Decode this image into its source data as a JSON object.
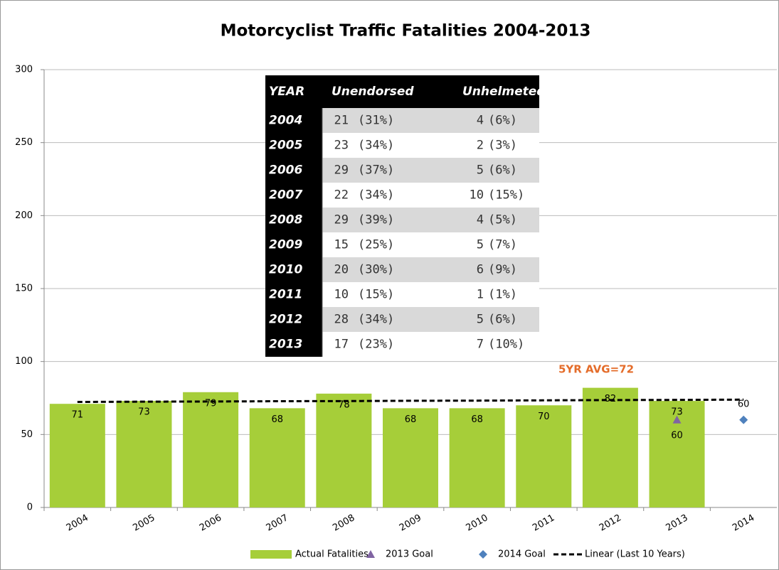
{
  "chart_data": {
    "type": "bar",
    "title": "Motorcyclist Traffic Fatalities 2004-2013",
    "annotation": "5YR AVG=72",
    "categories": [
      "2004",
      "2005",
      "2006",
      "2007",
      "2008",
      "2009",
      "2010",
      "2011",
      "2012",
      "2013",
      "2014"
    ],
    "series": [
      {
        "name": "Actual Fatalities",
        "kind": "bar",
        "color": "#a6ce39",
        "data_labels": true,
        "label_position": "inside",
        "values": [
          71,
          73,
          79,
          68,
          78,
          68,
          68,
          70,
          82,
          73,
          null
        ]
      },
      {
        "name": "2013 Goal",
        "kind": "marker",
        "marker": "triangle",
        "color": "#8064a2",
        "data_labels": true,
        "label_position": "below",
        "values": [
          null,
          null,
          null,
          null,
          null,
          null,
          null,
          null,
          null,
          60,
          null
        ]
      },
      {
        "name": "2014 Goal",
        "kind": "marker",
        "marker": "diamond",
        "color": "#4f81bd",
        "data_labels": true,
        "label_position": "above",
        "values": [
          null,
          null,
          null,
          null,
          null,
          null,
          null,
          null,
          null,
          null,
          60
        ]
      },
      {
        "name": "Linear (Last 10 Years)",
        "kind": "line",
        "dashed": true,
        "color": "#000000",
        "data_labels": false,
        "values": [
          72.3,
          72.5,
          72.6,
          72.8,
          72.9,
          73.1,
          73.2,
          73.4,
          73.6,
          73.7,
          73.9
        ]
      }
    ],
    "ylim": [
      0,
      300
    ],
    "yticks": [
      0,
      50,
      100,
      150,
      200,
      250,
      300
    ],
    "grid": true,
    "legend": "bottom"
  },
  "table": {
    "header": [
      "YEAR",
      "Unendorsed",
      "Unhelmeted"
    ],
    "rows": [
      [
        "2004",
        "21",
        "(31%)",
        "4",
        "(6%)"
      ],
      [
        "2005",
        "23",
        "(34%)",
        "2",
        "(3%)"
      ],
      [
        "2006",
        "29",
        "(37%)",
        "5",
        "(6%)"
      ],
      [
        "2007",
        "22",
        "(34%)",
        "10",
        "(15%)"
      ],
      [
        "2008",
        "29",
        "(39%)",
        "4",
        "(5%)"
      ],
      [
        "2009",
        "15",
        "(25%)",
        "5",
        "(7%)"
      ],
      [
        "2010",
        "20",
        "(30%)",
        "6",
        "(9%)"
      ],
      [
        "2011",
        "10",
        "(15%)",
        "1",
        "(1%)"
      ],
      [
        "2012",
        "28",
        "(34%)",
        "5",
        "(6%)"
      ],
      [
        "2013",
        "17",
        "(23%)",
        "7",
        "(10%)"
      ]
    ]
  }
}
